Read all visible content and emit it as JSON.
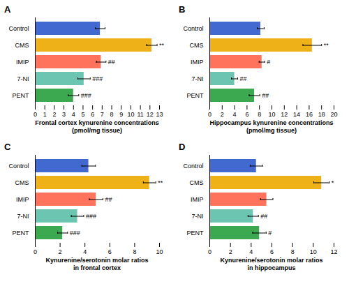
{
  "chart_data": [
    {
      "type": "bar",
      "orientation": "horizontal",
      "title": "A",
      "xlabel": "Frontal cortex kynurenine concentrations\n(pmol/mg tissue)",
      "categories": [
        "Control",
        "CMS",
        "IMIP",
        "7-NI",
        "PENT"
      ],
      "values": [
        6.8,
        12.2,
        6.9,
        5.1,
        4.0
      ],
      "errors": [
        0.5,
        0.55,
        0.5,
        0.65,
        0.55
      ],
      "xlim": [
        0,
        13
      ],
      "xticks": [
        0,
        1,
        2,
        3,
        4,
        5,
        6,
        7,
        8,
        9,
        10,
        11,
        12,
        13
      ],
      "annotations": [
        {
          "category": "CMS",
          "text": "**"
        },
        {
          "category": "IMIP",
          "text": "##"
        },
        {
          "category": "7-NI",
          "text": "###"
        },
        {
          "category": "PENT",
          "text": "###"
        }
      ]
    },
    {
      "type": "bar",
      "orientation": "horizontal",
      "title": "B",
      "xlabel": "Hippocampus kynurenine concentrations\n(pmol/mg tissue)",
      "categories": [
        "Control",
        "CMS",
        "IMIP",
        "7-NI",
        "PENT"
      ],
      "values": [
        8.2,
        16.5,
        8.4,
        4.0,
        7.2
      ],
      "errors": [
        0.55,
        1.5,
        0.45,
        0.5,
        0.85
      ],
      "xlim": [
        0,
        20
      ],
      "xticks": [
        0,
        2,
        4,
        6,
        8,
        10,
        12,
        14,
        16,
        18,
        20
      ],
      "annotations": [
        {
          "category": "CMS",
          "text": "**"
        },
        {
          "category": "IMIP",
          "text": "#"
        },
        {
          "category": "7-NI",
          "text": "##"
        },
        {
          "category": "PENT",
          "text": "##"
        }
      ]
    },
    {
      "type": "bar",
      "orientation": "horizontal",
      "title": "C",
      "xlabel": "Kynurenine/serotonin molar ratios\nin frontal cortex",
      "categories": [
        "Control",
        "CMS",
        "IMIP",
        "7-NI",
        "PENT"
      ],
      "values": [
        4.3,
        9.2,
        4.9,
        3.4,
        2.2
      ],
      "errors": [
        0.55,
        0.5,
        0.55,
        0.5,
        0.4
      ],
      "xlim": [
        0,
        10
      ],
      "xticks": [
        0,
        2,
        4,
        6,
        8,
        10
      ],
      "annotations": [
        {
          "category": "CMS",
          "text": "**"
        },
        {
          "category": "IMIP",
          "text": "##"
        },
        {
          "category": "7-NI",
          "text": "###"
        },
        {
          "category": "PENT",
          "text": "###"
        }
      ]
    },
    {
      "type": "bar",
      "orientation": "horizontal",
      "title": "D",
      "xlabel": "Kynurenine/serotonin molar ratios\nin hippocampus",
      "categories": [
        "Control",
        "CMS",
        "IMIP",
        "7-NI",
        "PENT"
      ],
      "values": [
        4.5,
        10.8,
        5.5,
        4.2,
        4.8
      ],
      "errors": [
        0.6,
        0.75,
        0.6,
        0.5,
        0.65
      ],
      "xlim": [
        0,
        12
      ],
      "xticks": [
        0,
        2,
        4,
        6,
        8,
        10,
        12
      ],
      "annotations": [
        {
          "category": "CMS",
          "text": "*"
        },
        {
          "category": "7-NI",
          "text": "##"
        },
        {
          "category": "PENT",
          "text": "#"
        }
      ]
    }
  ]
}
